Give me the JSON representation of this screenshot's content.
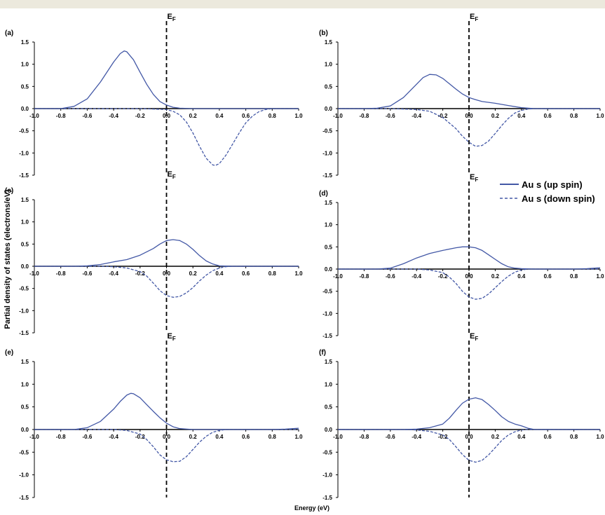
{
  "figure": {
    "ylabel": "Partial density of states (electrons/eV)",
    "xlabel": "Energy (eV)",
    "fermi_label": "E",
    "fermi_sub": "F",
    "legend": [
      {
        "label": "Au s (up spin)",
        "style": "solid"
      },
      {
        "label": "Au s (down spin)",
        "style": "dashed"
      }
    ],
    "colors": {
      "series": "#4358a6",
      "axis": "#000000",
      "fermi": "#000000"
    }
  },
  "chart_data": [
    {
      "type": "line",
      "panel": "(a)",
      "xlim": [
        -1.0,
        1.0
      ],
      "ylim": [
        -1.5,
        1.5
      ],
      "xticks": [
        "-1.0",
        "-0.8",
        "-0.6",
        "-0.4",
        "-0.2",
        "0.0",
        "0.2",
        "0.4",
        "0.6",
        "0.8",
        "1.0"
      ],
      "yticks": [
        "1.5",
        "1.0",
        "0.5",
        "0.0",
        "-0.5",
        "-1.0",
        "-1.5"
      ],
      "series": [
        {
          "name": "Au s (up spin)",
          "x": [
            -1.0,
            -0.8,
            -0.7,
            -0.6,
            -0.5,
            -0.4,
            -0.35,
            -0.32,
            -0.3,
            -0.25,
            -0.2,
            -0.15,
            -0.1,
            -0.05,
            0.0,
            0.05,
            0.1,
            0.2,
            0.4,
            0.6,
            0.8,
            1.0
          ],
          "y": [
            0.0,
            0.0,
            0.05,
            0.22,
            0.6,
            1.05,
            1.24,
            1.3,
            1.28,
            1.1,
            0.82,
            0.55,
            0.32,
            0.16,
            0.08,
            0.03,
            0.01,
            0.0,
            0.0,
            0.0,
            0.0,
            0.0
          ]
        },
        {
          "name": "Au s (down spin)",
          "x": [
            -1.0,
            -0.8,
            -0.6,
            -0.4,
            -0.2,
            0.0,
            0.05,
            0.1,
            0.15,
            0.2,
            0.25,
            0.3,
            0.35,
            0.37,
            0.4,
            0.45,
            0.5,
            0.55,
            0.6,
            0.65,
            0.7,
            0.75,
            0.8,
            1.0
          ],
          "y": [
            0.0,
            0.0,
            0.0,
            0.0,
            0.0,
            -0.02,
            -0.06,
            -0.14,
            -0.3,
            -0.55,
            -0.85,
            -1.12,
            -1.27,
            -1.28,
            -1.24,
            -1.05,
            -0.8,
            -0.55,
            -0.32,
            -0.17,
            -0.07,
            -0.02,
            0.0,
            0.0
          ]
        }
      ]
    },
    {
      "type": "line",
      "panel": "(b)",
      "xlim": [
        -1.0,
        1.0
      ],
      "ylim": [
        -1.5,
        1.5
      ],
      "xticks": [
        "-1.0",
        "-0.8",
        "-0.6",
        "-0.4",
        "-0.2",
        "0.0",
        "0.2",
        "0.4",
        "0.6",
        "0.8",
        "1.0"
      ],
      "yticks": [
        "1.5",
        "1.0",
        "0.5",
        "0.0",
        "-0.5",
        "-1.0",
        "-1.5"
      ],
      "series": [
        {
          "name": "Au s (up spin)",
          "x": [
            -1.0,
            -0.8,
            -0.7,
            -0.6,
            -0.5,
            -0.4,
            -0.35,
            -0.3,
            -0.25,
            -0.2,
            -0.15,
            -0.1,
            -0.05,
            0.0,
            0.05,
            0.1,
            0.2,
            0.3,
            0.4,
            0.5,
            0.6,
            1.0
          ],
          "y": [
            0.0,
            0.0,
            0.01,
            0.06,
            0.25,
            0.55,
            0.7,
            0.77,
            0.76,
            0.68,
            0.56,
            0.44,
            0.33,
            0.25,
            0.2,
            0.16,
            0.12,
            0.07,
            0.02,
            0.0,
            0.0,
            0.0
          ]
        },
        {
          "name": "Au s (down spin)",
          "x": [
            -1.0,
            -0.6,
            -0.4,
            -0.3,
            -0.2,
            -0.1,
            -0.05,
            0.0,
            0.05,
            0.1,
            0.15,
            0.2,
            0.25,
            0.3,
            0.35,
            0.4,
            0.45,
            0.5,
            1.0
          ],
          "y": [
            0.0,
            0.0,
            -0.02,
            -0.06,
            -0.2,
            -0.45,
            -0.62,
            -0.76,
            -0.85,
            -0.83,
            -0.73,
            -0.56,
            -0.38,
            -0.22,
            -0.1,
            -0.04,
            -0.01,
            0.0,
            0.0
          ]
        }
      ]
    },
    {
      "type": "line",
      "panel": "(c)",
      "xlim": [
        -1.0,
        1.0
      ],
      "ylim": [
        -1.5,
        1.5
      ],
      "xticks": [
        "-1.0",
        "-0.8",
        "-0.6",
        "-0.4",
        "-0.2",
        "0.0",
        "0.2",
        "0.4",
        "0.6",
        "0.8",
        "1.0"
      ],
      "yticks": [
        "1.5",
        "1.0",
        "0.5",
        "0.0",
        "-0.5",
        "-1.0",
        "-1.5"
      ],
      "series": [
        {
          "name": "Au s (up spin)",
          "x": [
            -1.0,
            -0.7,
            -0.6,
            -0.5,
            -0.4,
            -0.3,
            -0.2,
            -0.1,
            -0.05,
            0.0,
            0.05,
            0.1,
            0.15,
            0.2,
            0.25,
            0.3,
            0.35,
            0.4,
            0.5,
            1.0
          ],
          "y": [
            0.0,
            0.0,
            0.01,
            0.04,
            0.1,
            0.15,
            0.25,
            0.4,
            0.5,
            0.58,
            0.6,
            0.58,
            0.5,
            0.38,
            0.24,
            0.12,
            0.05,
            0.01,
            0.0,
            0.0
          ]
        },
        {
          "name": "Au s (down spin)",
          "x": [
            -1.0,
            -0.5,
            -0.4,
            -0.3,
            -0.2,
            -0.15,
            -0.1,
            -0.05,
            0.0,
            0.05,
            0.1,
            0.15,
            0.2,
            0.25,
            0.3,
            0.35,
            0.4,
            0.45,
            0.5,
            1.0
          ],
          "y": [
            0.0,
            0.0,
            -0.01,
            -0.04,
            -0.12,
            -0.22,
            -0.38,
            -0.55,
            -0.66,
            -0.7,
            -0.68,
            -0.6,
            -0.48,
            -0.33,
            -0.2,
            -0.1,
            -0.04,
            -0.01,
            0.0,
            0.0
          ]
        }
      ]
    },
    {
      "type": "line",
      "panel": "(d)",
      "xlim": [
        -1.0,
        1.0
      ],
      "ylim": [
        -1.5,
        1.5
      ],
      "xticks": [
        "-1.0",
        "-0.8",
        "-0.6",
        "-0.4",
        "-0.2",
        "0.0",
        "0.2",
        "0.4",
        "0.6",
        "0.8",
        "1.0"
      ],
      "yticks": [
        "1.5",
        "1.0",
        "0.5",
        "0.0",
        "-0.5",
        "-1.0",
        "-1.5"
      ],
      "series": [
        {
          "name": "Au s (up spin)",
          "x": [
            -1.0,
            -0.7,
            -0.6,
            -0.5,
            -0.4,
            -0.3,
            -0.2,
            -0.1,
            -0.05,
            0.0,
            0.05,
            0.1,
            0.15,
            0.2,
            0.25,
            0.3,
            0.35,
            0.4,
            0.5,
            0.8,
            0.9,
            1.0
          ],
          "y": [
            0.0,
            0.0,
            0.02,
            0.12,
            0.25,
            0.35,
            0.42,
            0.48,
            0.5,
            0.5,
            0.48,
            0.42,
            0.32,
            0.22,
            0.12,
            0.05,
            0.02,
            0.01,
            0.0,
            0.0,
            0.01,
            0.03
          ]
        },
        {
          "name": "Au s (down spin)",
          "x": [
            -1.0,
            -0.4,
            -0.3,
            -0.2,
            -0.15,
            -0.1,
            -0.05,
            0.0,
            0.05,
            0.1,
            0.15,
            0.2,
            0.25,
            0.3,
            0.35,
            0.4,
            0.45,
            1.0
          ],
          "y": [
            0.0,
            0.0,
            -0.02,
            -0.08,
            -0.18,
            -0.32,
            -0.5,
            -0.63,
            -0.68,
            -0.66,
            -0.56,
            -0.42,
            -0.28,
            -0.16,
            -0.07,
            -0.02,
            0.0,
            0.0
          ]
        }
      ]
    },
    {
      "type": "line",
      "panel": "(e)",
      "xlim": [
        -1.0,
        1.0
      ],
      "ylim": [
        -1.5,
        1.5
      ],
      "xticks": [
        "-1.0",
        "-0.8",
        "-0.6",
        "-0.4",
        "-0.2",
        "0.0",
        "0.2",
        "0.4",
        "0.6",
        "0.8",
        "1.0"
      ],
      "yticks": [
        "1.5",
        "1.0",
        "0.5",
        "0.0",
        "-0.5",
        "-1.0",
        "-1.5"
      ],
      "series": [
        {
          "name": "Au s (up spin)",
          "x": [
            -1.0,
            -0.7,
            -0.6,
            -0.5,
            -0.4,
            -0.35,
            -0.3,
            -0.27,
            -0.25,
            -0.2,
            -0.15,
            -0.1,
            -0.05,
            0.0,
            0.05,
            0.1,
            0.2,
            0.6,
            0.8,
            0.9,
            1.0
          ],
          "y": [
            0.0,
            0.0,
            0.04,
            0.18,
            0.45,
            0.62,
            0.76,
            0.8,
            0.79,
            0.7,
            0.55,
            0.4,
            0.26,
            0.14,
            0.06,
            0.02,
            0.0,
            0.0,
            0.0,
            0.01,
            0.03
          ]
        },
        {
          "name": "Au s (down spin)",
          "x": [
            -1.0,
            -0.4,
            -0.3,
            -0.2,
            -0.15,
            -0.1,
            -0.05,
            0.0,
            0.05,
            0.1,
            0.15,
            0.2,
            0.25,
            0.3,
            0.35,
            0.4,
            0.45,
            1.0
          ],
          "y": [
            0.0,
            0.0,
            -0.02,
            -0.1,
            -0.22,
            -0.38,
            -0.56,
            -0.67,
            -0.71,
            -0.7,
            -0.6,
            -0.44,
            -0.28,
            -0.15,
            -0.06,
            -0.02,
            0.0,
            0.0
          ]
        }
      ]
    },
    {
      "type": "line",
      "panel": "(f)",
      "xlim": [
        -1.0,
        1.0
      ],
      "ylim": [
        -1.5,
        1.5
      ],
      "xticks": [
        "-1.0",
        "-0.8",
        "-0.6",
        "-0.4",
        "-0.2",
        "0.0",
        "0.2",
        "0.4",
        "0.6",
        "0.8",
        "1.0"
      ],
      "yticks": [
        "1.5",
        "1.0",
        "0.5",
        "0.0",
        "-0.5",
        "-1.0",
        "-1.5"
      ],
      "series": [
        {
          "name": "Au s (up spin)",
          "x": [
            -1.0,
            -0.5,
            -0.4,
            -0.3,
            -0.2,
            -0.15,
            -0.1,
            -0.05,
            0.0,
            0.05,
            0.1,
            0.15,
            0.2,
            0.25,
            0.3,
            0.35,
            0.4,
            0.45,
            0.5,
            1.0
          ],
          "y": [
            0.0,
            0.0,
            0.01,
            0.04,
            0.12,
            0.25,
            0.42,
            0.58,
            0.67,
            0.7,
            0.66,
            0.55,
            0.42,
            0.28,
            0.18,
            0.12,
            0.08,
            0.03,
            0.0,
            0.0
          ]
        },
        {
          "name": "Au s (down spin)",
          "x": [
            -1.0,
            -0.5,
            -0.4,
            -0.3,
            -0.2,
            -0.15,
            -0.1,
            -0.05,
            0.0,
            0.05,
            0.1,
            0.15,
            0.2,
            0.25,
            0.3,
            0.35,
            0.4,
            0.45,
            1.0
          ],
          "y": [
            0.0,
            0.0,
            -0.01,
            -0.04,
            -0.12,
            -0.22,
            -0.38,
            -0.55,
            -0.68,
            -0.72,
            -0.68,
            -0.56,
            -0.4,
            -0.24,
            -0.12,
            -0.05,
            -0.01,
            0.0,
            0.0
          ]
        }
      ]
    }
  ]
}
